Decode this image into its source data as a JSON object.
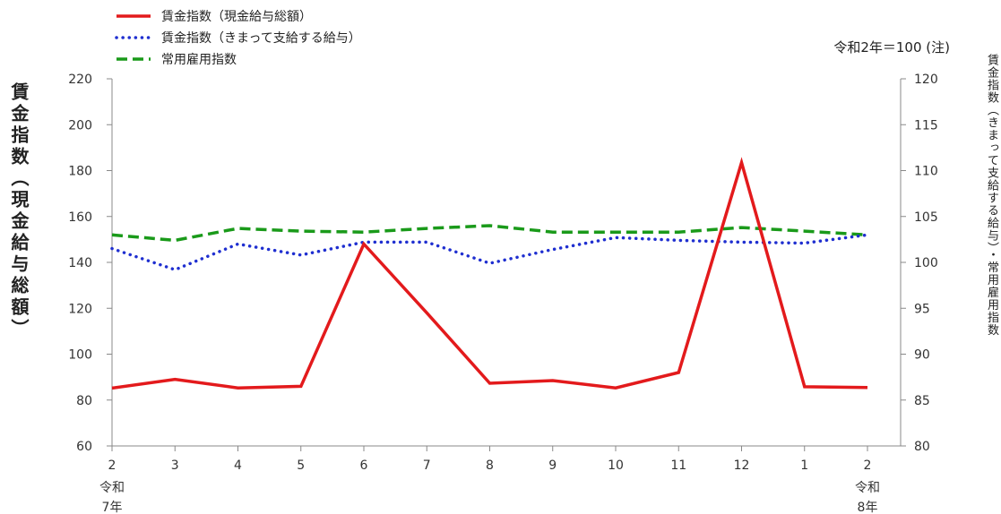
{
  "chart_data": {
    "type": "line",
    "note": "令和2年＝100 (注)",
    "ylabel_left": "賃金指数（現金給与総額）",
    "ylabel_right": "賃金指数（きまって支給する給与）・常用雇用指数",
    "categories": [
      "2",
      "3",
      "4",
      "5",
      "6",
      "7",
      "8",
      "9",
      "10",
      "11",
      "12",
      "1",
      "2"
    ],
    "category_sublabels": [
      {
        "index": 0,
        "line1": "令和",
        "line2": "7年"
      },
      {
        "index": 12,
        "line1": "令和",
        "line2": "8年"
      }
    ],
    "left_axis": {
      "min": 60,
      "max": 220,
      "ticks": [
        60,
        80,
        100,
        120,
        140,
        160,
        180,
        200,
        220
      ]
    },
    "right_axis": {
      "min": 80,
      "max": 120,
      "ticks": [
        80,
        85,
        90,
        95,
        100,
        105,
        110,
        115,
        120
      ]
    },
    "series": [
      {
        "name": "賃金指数（現金給与総額）",
        "axis": "left",
        "color": "#e31a1c",
        "style": "solid",
        "values": [
          85.2,
          89.0,
          85.3,
          86.0,
          148.0,
          118.0,
          87.3,
          88.5,
          85.3,
          92.0,
          183.5,
          85.8,
          85.5
        ]
      },
      {
        "name": "賃金指数（きまって支給する給与）",
        "axis": "right",
        "color": "#1f2fd0",
        "style": "dotted",
        "values": [
          101.5,
          99.2,
          102.0,
          100.8,
          102.2,
          102.2,
          99.9,
          101.4,
          102.7,
          102.4,
          102.2,
          102.1,
          103.0
        ]
      },
      {
        "name": "常用雇用指数",
        "axis": "right",
        "color": "#1a9a1a",
        "style": "dashed",
        "values": [
          103.0,
          102.4,
          103.7,
          103.4,
          103.3,
          103.7,
          104.0,
          103.3,
          103.3,
          103.3,
          103.8,
          103.4,
          103.0
        ]
      }
    ]
  }
}
